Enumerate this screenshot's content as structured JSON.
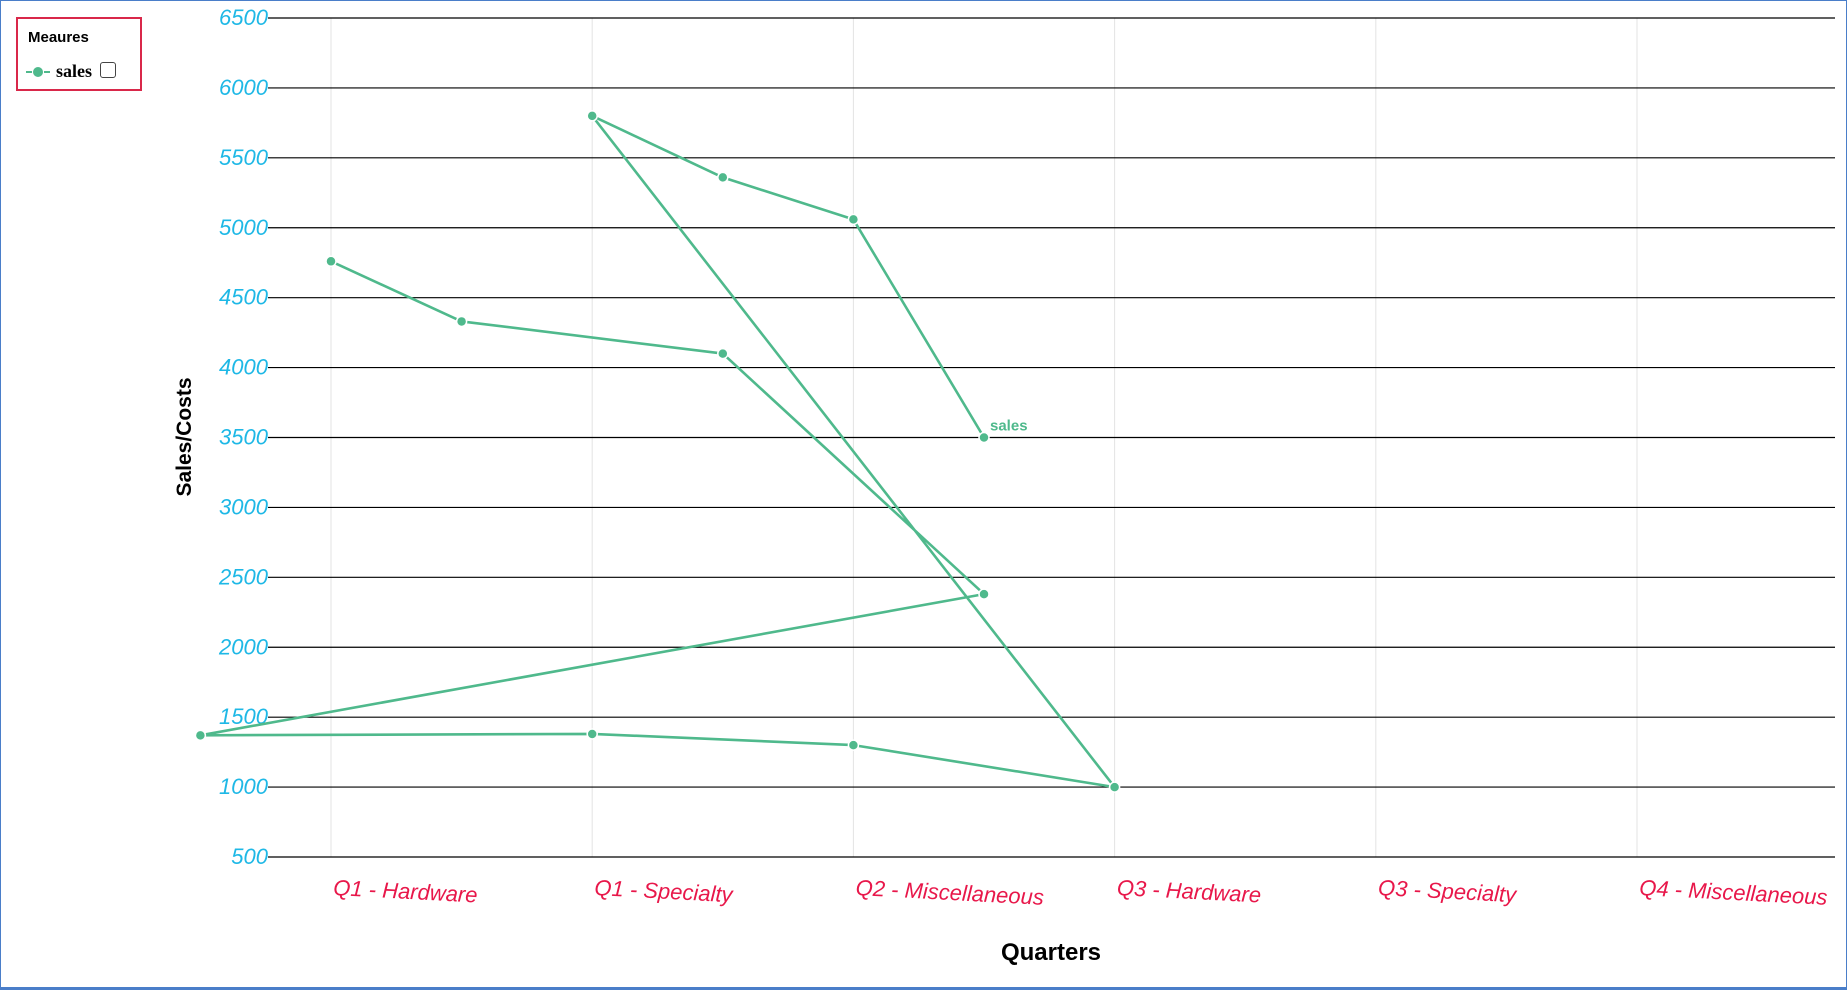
{
  "legend": {
    "title": "Meaures",
    "series_label": "sales"
  },
  "colors": {
    "series": "#4fb98c",
    "y_ticks": "#1eb8e6",
    "x_ticks": "#e8174a",
    "legend_border": "#d9284a",
    "frame": "#4a7ec9"
  },
  "chart_data": {
    "type": "line",
    "title": "",
    "xlabel": "Quarters",
    "ylabel": "Sales/Costs",
    "categories": [
      "Q1 - Hardware",
      "Q1 - Specialty",
      "Q2 - Miscellaneous",
      "Q3 - Hardware",
      "Q3 - Specialty",
      "Q4 - Miscellaneous"
    ],
    "ylim": [
      500,
      6500
    ],
    "yticks": [
      500,
      1000,
      1500,
      2000,
      2500,
      3000,
      3500,
      4000,
      4500,
      5000,
      5500,
      6000,
      6500
    ],
    "grid": true,
    "legend_position": "top-left",
    "series": [
      {
        "name": "sales",
        "end_label": "sales",
        "points": [
          {
            "x": 0,
            "y": 4760
          },
          {
            "x": 0.5,
            "y": 4330
          },
          {
            "x": 1.5,
            "y": 4100
          },
          {
            "x": 2.5,
            "y": 2380
          },
          {
            "x": -0.5,
            "y": 1370
          },
          {
            "x": 1,
            "y": 1380
          },
          {
            "x": 2,
            "y": 1300
          },
          {
            "x": 3,
            "y": 1000
          },
          {
            "x": 1,
            "y": 5800
          },
          {
            "x": 1.5,
            "y": 5360
          },
          {
            "x": 2,
            "y": 5060
          },
          {
            "x": 2.5,
            "y": 3500
          }
        ]
      }
    ]
  }
}
